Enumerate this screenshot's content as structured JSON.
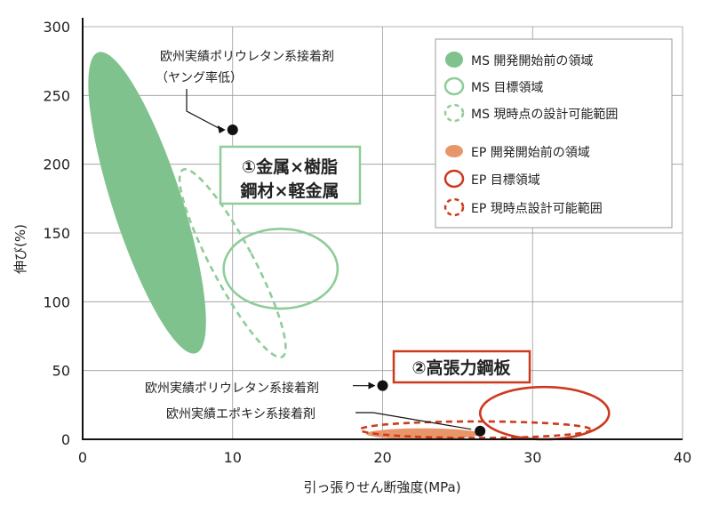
{
  "chart_data": {
    "type": "scatter",
    "xlabel": "引っ張りせん断強度(MPa)",
    "ylabel": "伸び(%)",
    "xlim": [
      0,
      40
    ],
    "ylim": [
      0,
      300
    ],
    "xticks": [
      0,
      10,
      20,
      30,
      40
    ],
    "yticks": [
      0,
      50,
      100,
      150,
      200,
      250,
      300
    ],
    "grid": true,
    "legend_position": "top-right",
    "regions": [
      {
        "name": "MS 開発開始前の領域",
        "style": "filled",
        "color": "#7fc28e",
        "cx": 4.3,
        "cy": 172,
        "rx": 2.3,
        "ry": 115,
        "rotation_deg": -18
      },
      {
        "name": "MS 目標領域",
        "style": "outline",
        "color": "#8fcc99",
        "cx": 13.2,
        "cy": 124,
        "rx": 3.8,
        "ry": 29,
        "rotation_deg": 0
      },
      {
        "name": "MS 現時点の設計可能範囲",
        "style": "dashed",
        "color": "#8fcc99",
        "cx": 10.0,
        "cy": 128,
        "rx": 1.4,
        "ry": 77,
        "rotation_deg": -28
      },
      {
        "name": "EP 開発開始前の領域",
        "style": "filled",
        "color": "#e8956a",
        "cx": 22.7,
        "cy": 4,
        "rx": 3.8,
        "ry": 4,
        "rotation_deg": 0
      },
      {
        "name": "EP 目標領域",
        "style": "outline",
        "color": "#cc3a1e",
        "cx": 30.8,
        "cy": 19,
        "rx": 4.3,
        "ry": 19,
        "rotation_deg": 0
      },
      {
        "name": "EP 現時点設計可能範囲",
        "style": "dashed",
        "color": "#cc3a1e",
        "cx": 26.2,
        "cy": 7,
        "rx": 7.7,
        "ry": 6,
        "rotation_deg": 0
      }
    ],
    "points": [
      {
        "label": "欧州実績ポリウレタン系接着剤",
        "sublabel": "（ヤング率低）",
        "x": 10,
        "y": 225
      },
      {
        "label": "欧州実績ポリウレタン系接着剤",
        "x": 20,
        "y": 39
      },
      {
        "label": "欧州実績エポキシ系接着剤",
        "x": 26.5,
        "y": 6
      }
    ],
    "boxes": [
      {
        "lines": [
          "①金属×樹脂",
          "鋼材×軽金属"
        ],
        "color": "#8fcc99"
      },
      {
        "lines": [
          "②高張力鋼板"
        ],
        "color": "#cc3a1e"
      }
    ]
  }
}
